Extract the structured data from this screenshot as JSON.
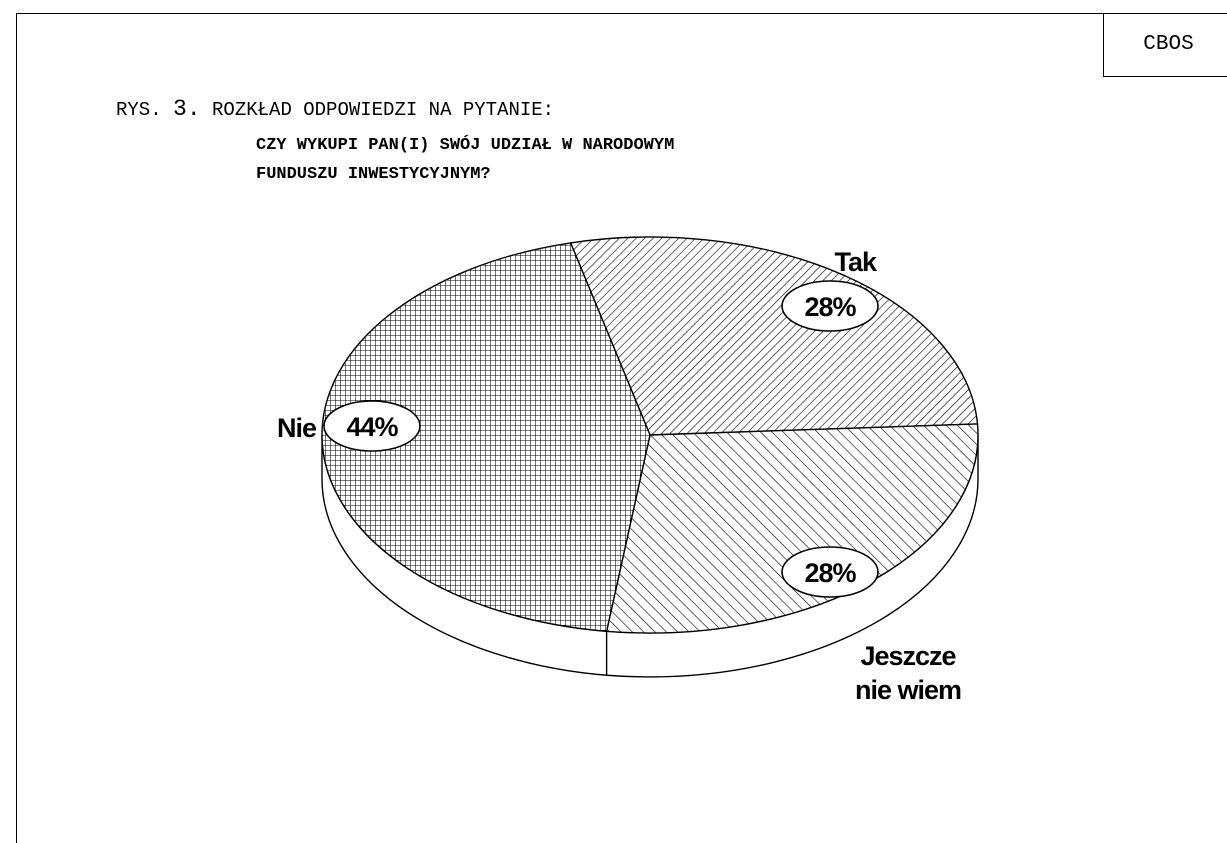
{
  "header": {
    "source": "CBOS",
    "figure_prefix": "RYS.",
    "figure_number": "3.",
    "figure_caption": "ROZKŁAD ODPOWIEDZI NA PYTANIE:",
    "question_line1": "CZY WYKUPI PAN(I) SWÓJ UDZIAŁ W NARODOWYM",
    "question_line2": "FUNDUSZU INWESTYCYJNYM?"
  },
  "chart_data": {
    "type": "pie",
    "title": "",
    "categories": [
      "Tak",
      "Jeszcze nie wiem",
      "Nie"
    ],
    "values": [
      28,
      28,
      44
    ],
    "value_labels": [
      "28%",
      "28%",
      "44%"
    ],
    "label_lines": [
      [
        "Tak"
      ],
      [
        "Jeszcze",
        "nie wiem"
      ],
      [
        "Nie"
      ]
    ],
    "patterns": [
      "diagonal-hatch-dense",
      "diagonal-hatch",
      "crosshatch-grid"
    ],
    "style": "3d-tilted",
    "legend": "none"
  }
}
